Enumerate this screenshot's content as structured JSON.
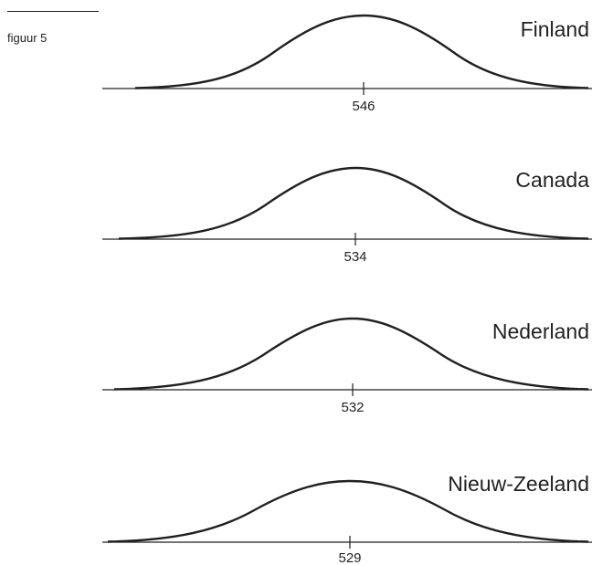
{
  "figure_label": "figuur 5",
  "panels": [
    {
      "country": "Finland",
      "mean_label": "546"
    },
    {
      "country": "Canada",
      "mean_label": "534"
    },
    {
      "country": "Nederland",
      "mean_label": "532"
    },
    {
      "country": "Nieuw-Zeeland",
      "mean_label": "529"
    }
  ],
  "colors": {
    "ink": "#231f20",
    "background": "#ffffff"
  }
}
